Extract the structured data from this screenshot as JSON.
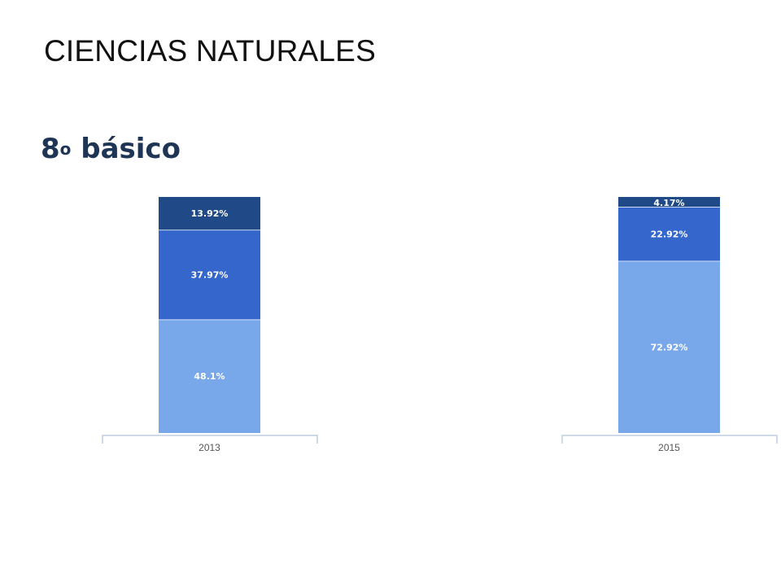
{
  "slide": {
    "title": "CIENCIAS NATURALES",
    "section_main": "8",
    "section_sup": "o",
    "section_rest": " básico"
  },
  "colors": {
    "light": "#78a8ea",
    "mid": "#3466cc",
    "dark": "#1f4a87",
    "axis": "#bfcde0",
    "title": "#1f3556"
  },
  "chart_data": [
    {
      "type": "bar",
      "stacked": true,
      "categories": [
        "2013"
      ],
      "ylim": [
        0,
        100
      ],
      "series": [
        {
          "values": [
            48.1
          ],
          "label": "48.1%",
          "color": "#78a8ea"
        },
        {
          "values": [
            37.97
          ],
          "label": "37.97%",
          "color": "#3466cc"
        },
        {
          "values": [
            13.92
          ],
          "label": "13.92%",
          "color": "#1f4a87"
        }
      ]
    },
    {
      "type": "bar",
      "stacked": true,
      "categories": [
        "2015"
      ],
      "ylim": [
        0,
        100
      ],
      "series": [
        {
          "values": [
            72.92
          ],
          "label": "72.92%",
          "color": "#78a8ea"
        },
        {
          "values": [
            22.92
          ],
          "label": "22.92%",
          "color": "#3466cc"
        },
        {
          "values": [
            4.17
          ],
          "label": "4.17%",
          "color": "#1f4a87"
        }
      ]
    }
  ]
}
